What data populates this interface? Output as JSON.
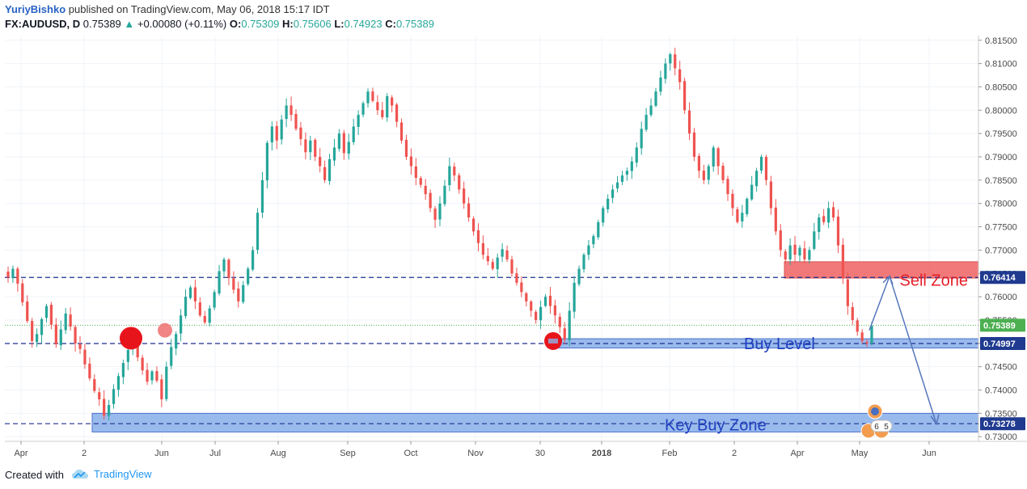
{
  "header": {
    "author": "YuriyBishko",
    "published_text": " published on TradingView.com, May 06, 2018 15:17 IDT",
    "symbol": "FX:AUDUSD, D",
    "last": "0.75389",
    "arrow": "▲",
    "change": "+0.00080 (+0.11%)",
    "o_label": "O:",
    "o_value": "0.75309",
    "h_label": "H:",
    "h_value": "0.75606",
    "l_label": "L:",
    "l_value": "0.74923",
    "c_label": "C:",
    "c_value": "0.75389"
  },
  "footer": {
    "created_with": "Created with",
    "brand": "TradingView"
  },
  "colors": {
    "up": "#26a69a",
    "down": "#ef5350",
    "sell_zone": "#f06262",
    "buy_zone": "#8fb3ea",
    "tag_blue": "#1f3a8f",
    "tag_green": "#4caf50",
    "dashed_line": "#1f2f8f",
    "arrow": "#5577bb"
  },
  "chart_data": {
    "type": "candlestick",
    "title": "",
    "y_axis": {
      "min": 0.729,
      "max": 0.816,
      "ticks": [
        "0.81500",
        "0.81000",
        "0.80500",
        "0.80000",
        "0.79500",
        "0.79000",
        "0.78500",
        "0.78000",
        "0.77500",
        "0.77000",
        "0.76500",
        "0.76000",
        "0.75500",
        "0.75000",
        "0.74500",
        "0.74000",
        "0.73500",
        "0.73000"
      ]
    },
    "x_axis": {
      "ticks": [
        "Apr",
        "2",
        "Jun",
        "Jul",
        "Aug",
        "Sep",
        "Oct",
        "Nov",
        "30",
        "2018",
        "Feb",
        "2",
        "Apr",
        "May",
        "Jun"
      ]
    },
    "series_closes": [
      0.7642,
      0.766,
      0.7628,
      0.7588,
      0.7548,
      0.7505,
      0.752,
      0.7552,
      0.758,
      0.754,
      0.7498,
      0.753,
      0.7564,
      0.7536,
      0.75,
      0.7488,
      0.7455,
      0.7425,
      0.7398,
      0.738,
      0.7345,
      0.7368,
      0.7402,
      0.743,
      0.7458,
      0.7486,
      0.7498,
      0.747,
      0.7442,
      0.7418,
      0.744,
      0.742,
      0.738,
      0.745,
      0.7492,
      0.752,
      0.756,
      0.76,
      0.762,
      0.759,
      0.756,
      0.7545,
      0.7575,
      0.761,
      0.7655,
      0.768,
      0.764,
      0.7615,
      0.759,
      0.7625,
      0.766,
      0.77,
      0.778,
      0.785,
      0.793,
      0.7965,
      0.7935,
      0.798,
      0.801,
      0.799,
      0.796,
      0.7938,
      0.791,
      0.7935,
      0.79,
      0.788,
      0.785,
      0.7895,
      0.792,
      0.795,
      0.7908,
      0.7932,
      0.7965,
      0.799,
      0.8015,
      0.804,
      0.802,
      0.8,
      0.7985,
      0.803,
      0.801,
      0.7975,
      0.7935,
      0.79,
      0.788,
      0.7855,
      0.784,
      0.782,
      0.779,
      0.7765,
      0.78,
      0.7838,
      0.788,
      0.786,
      0.783,
      0.78,
      0.777,
      0.774,
      0.7715,
      0.769,
      0.7676,
      0.766,
      0.7684,
      0.7702,
      0.768,
      0.765,
      0.763,
      0.761,
      0.759,
      0.757,
      0.755,
      0.7578,
      0.76,
      0.758,
      0.756,
      0.7535,
      0.7508,
      0.757,
      0.763,
      0.766,
      0.769,
      0.771,
      0.773,
      0.776,
      0.779,
      0.781,
      0.783,
      0.7845,
      0.786,
      0.787,
      0.789,
      0.792,
      0.796,
      0.799,
      0.801,
      0.804,
      0.807,
      0.81,
      0.812,
      0.809,
      0.806,
      0.8,
      0.795,
      0.79,
      0.787,
      0.785,
      0.788,
      0.792,
      0.788,
      0.785,
      0.782,
      0.779,
      0.776,
      0.778,
      0.781,
      0.784,
      0.787,
      0.79,
      0.785,
      0.779,
      0.774,
      0.77,
      0.768,
      0.771,
      0.769,
      0.7705,
      0.768,
      0.77,
      0.774,
      0.777,
      0.776,
      0.779,
      0.777,
      0.771,
      0.764,
      0.758,
      0.755,
      0.7525,
      0.7505,
      0.75,
      0.7538
    ],
    "annotations": [
      {
        "text": "Sell Zone",
        "type": "zone",
        "low": 0.764,
        "high": 0.7675
      },
      {
        "text": "Buy Level",
        "type": "level",
        "low": 0.749,
        "high": 0.751
      },
      {
        "text": "Key Buy Zone",
        "type": "zone",
        "low": 0.731,
        "high": 0.735
      }
    ],
    "price_labels": [
      {
        "value": 0.76414,
        "text": "0.76414",
        "style": "blue"
      },
      {
        "value": 0.75389,
        "text": "0.75389",
        "style": "green"
      },
      {
        "value": 0.74997,
        "text": "0.74997",
        "style": "blue"
      },
      {
        "value": 0.73278,
        "text": "0.73278",
        "style": "blue"
      }
    ],
    "horizontal_lines": [
      0.76414,
      0.74997,
      0.73278
    ],
    "last_price_line": 0.75389,
    "event_badges": [
      "6",
      "5"
    ]
  }
}
